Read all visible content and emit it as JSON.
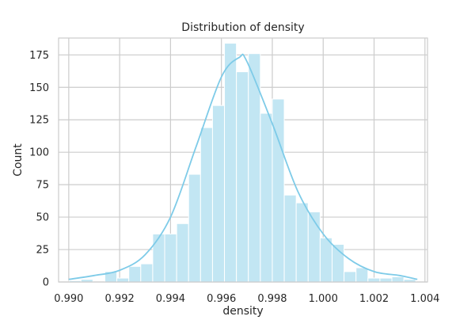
{
  "chart_data": {
    "type": "bar",
    "title": "Distribution of density",
    "xlabel": "density",
    "ylabel": "Count",
    "xlim": [
      0.9896,
      1.0041
    ],
    "ylim": [
      0,
      188
    ],
    "grid": true,
    "legend": "none",
    "xticks": [
      0.99,
      0.992,
      0.994,
      0.996,
      0.998,
      1.0,
      1.002,
      1.004
    ],
    "xtick_labels": [
      "0.990",
      "0.992",
      "0.994",
      "0.996",
      "0.998",
      "1.000",
      "1.002",
      "1.004"
    ],
    "yticks": [
      0,
      25,
      50,
      75,
      100,
      125,
      150,
      175
    ],
    "ytick_labels": [
      "0",
      "25",
      "50",
      "75",
      "100",
      "125",
      "150",
      "175"
    ],
    "bin_edges": [
      0.99001,
      0.99048,
      0.99095,
      0.99142,
      0.99189,
      0.99236,
      0.99283,
      0.9933,
      0.99377,
      0.99424,
      0.99471,
      0.99518,
      0.99565,
      0.99612,
      0.99659,
      0.99706,
      0.99753,
      0.998,
      0.99847,
      0.99894,
      0.99941,
      0.99988,
      1.00035,
      1.00082,
      1.00129,
      1.00176,
      1.00223,
      1.0027,
      1.00317,
      1.00364
    ],
    "counts": [
      1,
      2,
      0,
      8,
      3,
      12,
      14,
      37,
      37,
      45,
      83,
      119,
      136,
      184,
      162,
      176,
      130,
      141,
      67,
      61,
      54,
      34,
      29,
      8,
      11,
      3,
      3,
      4,
      2
    ],
    "kde": {
      "x": [
        0.99,
        0.991,
        0.992,
        0.993,
        0.994,
        0.995,
        0.996,
        0.9967,
        0.997,
        0.998,
        0.999,
        1.0,
        1.001,
        1.002,
        1.003,
        1.0037
      ],
      "y": [
        2,
        5,
        9,
        21,
        50,
        104,
        158,
        173,
        170,
        122,
        70,
        37,
        18,
        8,
        5,
        2
      ]
    },
    "bar_color": "#c2e6f3",
    "bar_edge_color": "#ffffff",
    "kde_color": "#7ecbe8"
  }
}
